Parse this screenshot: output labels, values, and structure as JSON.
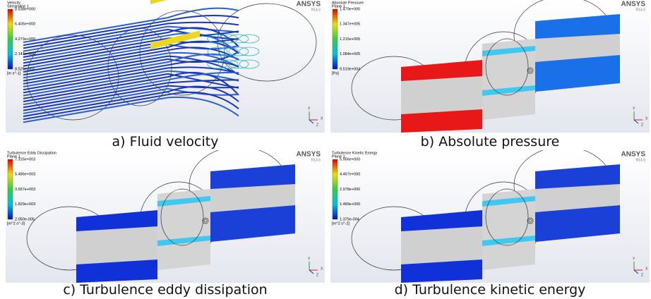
{
  "panels": [
    {
      "legend_title": "Velocity",
      "legend_subtitle": "Streamline 1",
      "legend_ticks": [
        "8.538e+000",
        "6.405e+000",
        "4.273e+000",
        "2.141e+000",
        "8.525e-003"
      ],
      "legend_unit": "[m s^-1]",
      "brand": "ANSYS",
      "version": "R14.5",
      "axes": [
        "Y",
        "X",
        "Z"
      ],
      "caption": "a) Fluid velocity"
    },
    {
      "legend_title": "Absolute Pressure",
      "legend_subtitle": "Plane 1",
      "legend_ticks": [
        "1.479e+005",
        "1.347e+005",
        "1.215e+005",
        "1.084e+005",
        "9.519e+004"
      ],
      "legend_unit": "[Pa]",
      "brand": "ANSYS",
      "version": "R14.5",
      "axes": [
        "Y",
        "X",
        "Z"
      ],
      "caption": "b) Absolute pressure"
    },
    {
      "legend_title": "Turbulence Eddy Dissipation",
      "legend_subtitle": "Plane 1",
      "legend_ticks": [
        "7.315e+003",
        "5.486e+003",
        "3.657e+003",
        "1.829e+003",
        "2.050e-005"
      ],
      "legend_unit": "[m^2 s^-3]",
      "brand": "ANSYS",
      "version": "R14.5",
      "axes": [
        "Y",
        "X",
        "Z"
      ],
      "caption": "c) Turbulence eddy dissipation"
    },
    {
      "legend_title": "Turbulence Kinetic Energy",
      "legend_subtitle": "Plane 1",
      "legend_ticks": [
        "5.956e+000",
        "4.467e+000",
        "2.978e+000",
        "1.489e+000",
        "1.375e-004"
      ],
      "legend_unit": "[m^2 s^-2]",
      "brand": "ANSYS",
      "version": "R14.5",
      "axes": [
        "Y",
        "X",
        "Z"
      ],
      "caption": "d) Turbulence kinetic energy"
    }
  ]
}
